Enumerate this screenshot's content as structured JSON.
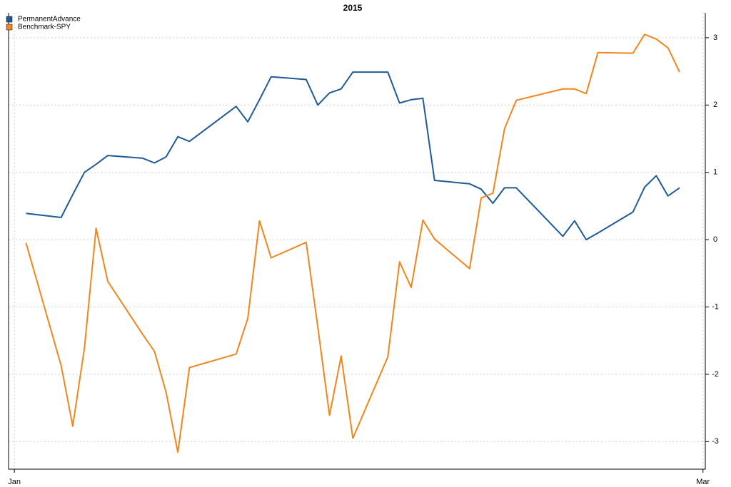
{
  "chart_data": {
    "type": "line",
    "title": "2015",
    "x": [
      1,
      4,
      5,
      6,
      7,
      8,
      11,
      12,
      13,
      14,
      15,
      19,
      20,
      21,
      22,
      25,
      26,
      27,
      28,
      29,
      32,
      33,
      34,
      35,
      36,
      39,
      40,
      41,
      42,
      43,
      47,
      48,
      49,
      50,
      53,
      54,
      55,
      56,
      57
    ],
    "series": [
      {
        "name": "PermanentAdvance",
        "color": "#1f5a96",
        "values": [
          0.39,
          0.33,
          0.67,
          1.0,
          1.12,
          1.25,
          1.21,
          1.14,
          1.23,
          1.53,
          1.46,
          1.98,
          1.75,
          2.08,
          2.42,
          2.38,
          2.0,
          2.18,
          2.24,
          2.49,
          2.49,
          2.03,
          2.08,
          2.1,
          0.88,
          0.83,
          0.75,
          0.54,
          0.77,
          0.77,
          0.05,
          0.28,
          0.0,
          0.1,
          0.41,
          0.78,
          0.95,
          0.65,
          0.77
        ]
      },
      {
        "name": "Benchmark-SPY",
        "color": "#f0861e",
        "values": [
          -0.05,
          -1.87,
          -2.77,
          -1.61,
          0.17,
          -0.62,
          -1.41,
          -1.66,
          -2.27,
          -3.16,
          -1.9,
          -1.7,
          -1.17,
          0.28,
          -0.27,
          -0.04,
          -1.3,
          -2.61,
          -1.73,
          -2.95,
          -1.74,
          -0.33,
          -0.71,
          0.29,
          0.01,
          -0.43,
          0.62,
          0.69,
          1.65,
          2.07,
          2.24,
          2.24,
          2.17,
          2.78,
          2.77,
          3.05,
          2.98,
          2.85,
          2.49
        ]
      }
    ],
    "xlim": [
      -0.5,
      59.2
    ],
    "xticks": [
      {
        "value": 0,
        "label": "Jan"
      },
      {
        "value": 59,
        "label": "Mar"
      }
    ],
    "ylim": [
      -3.41,
      3.37
    ],
    "yticks": [
      3,
      2,
      1,
      0,
      -1,
      -2,
      -3
    ],
    "grid": true,
    "legend": "top-left"
  }
}
